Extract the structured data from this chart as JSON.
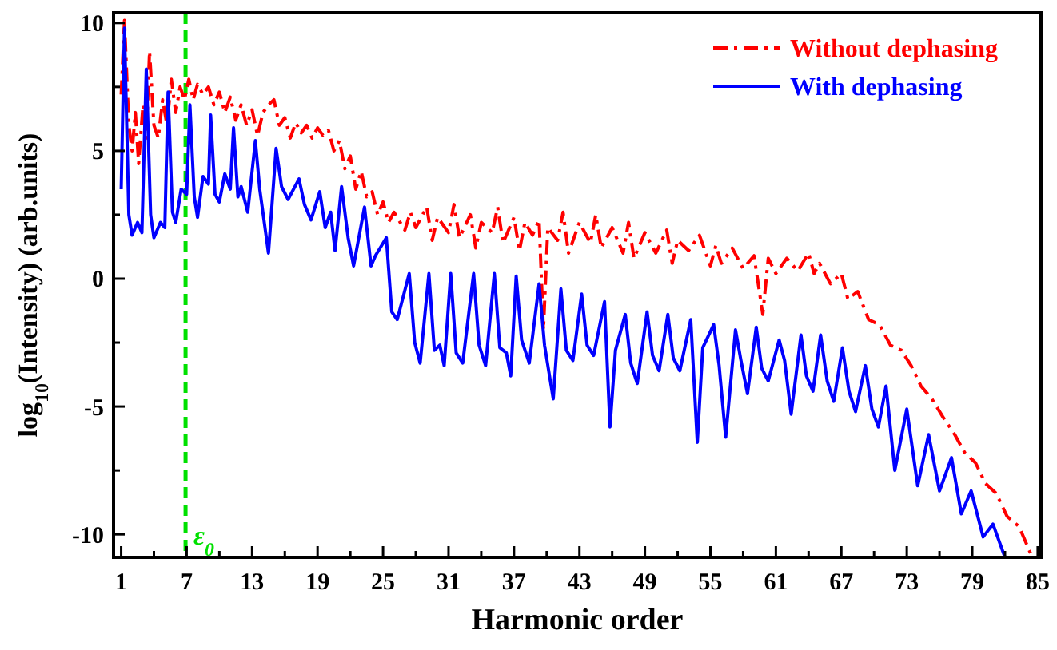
{
  "chart_data": {
    "type": "line",
    "xlabel": "Harmonic order",
    "ylabel": "log$_{10}$(Intensity) (arb.units)",
    "xlim": [
      0.3,
      85.3
    ],
    "ylim": [
      -10.9,
      10.4
    ],
    "xticks": [
      1,
      {
        "value": 4,
        "label": null
      },
      7,
      {
        "value": 10,
        "label": null
      },
      13,
      {
        "value": 16,
        "label": null
      },
      19,
      {
        "value": 22,
        "label": null
      },
      25,
      {
        "value": 28,
        "label": null
      },
      31,
      {
        "value": 34,
        "label": null
      },
      37,
      {
        "value": 40,
        "label": null
      },
      43,
      {
        "value": 46,
        "label": null
      },
      49,
      {
        "value": 52,
        "label": null
      },
      55,
      {
        "value": 58,
        "label": null
      },
      61,
      {
        "value": 64,
        "label": null
      },
      67,
      {
        "value": 70,
        "label": null
      },
      73,
      {
        "value": 76,
        "label": null
      },
      79,
      {
        "value": 82,
        "label": null
      },
      85
    ],
    "yticks": [
      -10,
      {
        "value": -7.5,
        "label": null
      },
      -5,
      {
        "value": -2.5,
        "label": null
      },
      0,
      {
        "value": 2.5,
        "label": null
      },
      5,
      {
        "value": 7.5,
        "label": null
      },
      10
    ],
    "grid": false,
    "legend": "top right",
    "ref_lines": [
      {
        "axis": "x",
        "value": 6.9,
        "label": "ε$_{0}$",
        "color": "#00e000",
        "line_style": "dashed"
      }
    ],
    "series": [
      {
        "name": "Without dephasing",
        "color": "#ff0000",
        "line_style": "dashdot",
        "x": [
          1,
          1.3,
          1.7,
          2,
          2.3,
          2.6,
          3,
          3.3,
          3.6,
          4,
          4.4,
          4.8,
          5.2,
          5.6,
          6,
          6.4,
          6.8,
          7.2,
          7.6,
          8,
          8.5,
          9,
          9.5,
          10,
          10.5,
          11,
          11.5,
          12,
          12.5,
          13,
          13.5,
          14,
          14.5,
          15,
          15.5,
          16,
          16.5,
          17,
          17.5,
          18,
          18.5,
          19,
          19.5,
          20,
          20.5,
          21,
          21.5,
          22,
          22.5,
          23,
          23.5,
          24,
          24.5,
          25,
          25.5,
          26,
          27,
          27.5,
          28,
          29,
          29.5,
          30,
          31,
          31.5,
          32,
          33,
          33.5,
          34,
          35,
          35.5,
          36,
          37,
          37.5,
          38,
          38.7,
          39.3,
          39.7,
          40.1,
          41,
          41.5,
          42,
          43,
          44,
          44.5,
          45,
          46,
          47,
          47.5,
          48,
          49,
          50,
          51,
          51.5,
          52,
          53,
          54,
          55,
          55.5,
          56,
          57,
          58,
          59,
          59.8,
          60.3,
          61,
          62,
          63,
          64,
          64.5,
          65,
          66,
          67,
          67.6,
          68.5,
          69.5,
          70.5,
          71.5,
          72.5,
          73.4,
          74.3,
          75.3,
          76.3,
          77.4,
          78.3,
          79.3,
          80.2,
          81.2,
          82.2,
          83.3,
          84.4
        ],
        "values": [
          7.2,
          10.1,
          6,
          5,
          6.5,
          4.5,
          6.8,
          5.5,
          8.9,
          6,
          5.5,
          7,
          6,
          7.8,
          6.5,
          7.5,
          7,
          7.8,
          7,
          7.6,
          7.2,
          7.5,
          6.8,
          7.3,
          6.5,
          7.1,
          6.2,
          6.8,
          6,
          6.6,
          5.6,
          6.5,
          6.8,
          7,
          6,
          6.3,
          5.5,
          6.1,
          5.7,
          6,
          5.5,
          5.9,
          5.6,
          5.8,
          5,
          5.4,
          4.3,
          4.8,
          3.5,
          4.2,
          3.2,
          3.4,
          2.5,
          3,
          2.2,
          2.6,
          1.9,
          2.6,
          2,
          2.8,
          1.5,
          2.4,
          1.8,
          2.9,
          1.6,
          2.5,
          1.2,
          2.2,
          1.8,
          2.8,
          1.4,
          2.4,
          1.1,
          2.2,
          1.7,
          2.3,
          -2,
          2,
          1.5,
          2.6,
          1,
          2.2,
          1.4,
          2.5,
          1.2,
          2,
          1,
          2.2,
          0.8,
          1.8,
          1,
          1.9,
          0.6,
          1.5,
          1.1,
          1.7,
          0.5,
          1.3,
          0.6,
          1.2,
          0.4,
          0.9,
          -1.4,
          0.8,
          0.2,
          0.8,
          0.3,
          1,
          0.2,
          0.6,
          -0.2,
          0.2,
          -0.8,
          -0.5,
          -1.6,
          -1.8,
          -2.6,
          -2.8,
          -3.4,
          -4.2,
          -4.7,
          -5.4,
          -6.1,
          -6.8,
          -7.2,
          -8,
          -8.4,
          -9.3,
          -9.7,
          -10.8
        ]
      },
      {
        "name": "With dephasing",
        "color": "#0000ff",
        "line_style": "solid",
        "x": [
          1,
          1.3,
          1.7,
          2,
          2.5,
          2.9,
          3.3,
          3.7,
          4,
          4.6,
          5,
          5.3,
          5.7,
          6,
          6.5,
          7,
          7.3,
          7.7,
          8,
          8.5,
          9,
          9.2,
          9.6,
          10,
          10.5,
          11,
          11.3,
          11.7,
          12,
          12.6,
          13.3,
          13.7,
          14.5,
          15.2,
          15.7,
          16.3,
          17.3,
          17.8,
          18.4,
          19.2,
          19.7,
          20.2,
          20.6,
          21.2,
          21.8,
          22.3,
          23.3,
          23.9,
          24.3,
          25.3,
          25.8,
          26.3,
          27.4,
          27.9,
          28.4,
          29.2,
          29.7,
          30.2,
          30.6,
          31.2,
          31.7,
          32.3,
          33.3,
          33.8,
          34.4,
          35.2,
          35.7,
          36.3,
          36.7,
          37.2,
          37.7,
          38.4,
          39.3,
          39.8,
          40.6,
          41.3,
          41.8,
          42.4,
          43.2,
          43.7,
          44.3,
          45.3,
          45.8,
          46.3,
          47.2,
          47.7,
          48.3,
          49.2,
          49.7,
          50.3,
          51.1,
          51.6,
          52.2,
          53.2,
          53.8,
          54.3,
          55.3,
          55.8,
          56.4,
          57.3,
          57.8,
          58.4,
          59.2,
          59.7,
          60.3,
          61.3,
          61.8,
          62.4,
          63.3,
          63.8,
          64.4,
          65.1,
          65.7,
          66.3,
          67.1,
          67.7,
          68.3,
          69.2,
          69.8,
          70.4,
          71.1,
          71.9,
          73,
          74,
          75,
          76,
          77.1,
          78,
          78.9,
          80,
          80.9,
          82
        ],
        "values": [
          3.5,
          9.8,
          2.5,
          1.7,
          2.2,
          1.8,
          8.2,
          2.5,
          1.6,
          2.2,
          2,
          7.3,
          2.6,
          2.2,
          3.5,
          3.3,
          6.8,
          3.2,
          2.4,
          4,
          3.7,
          6.4,
          3.3,
          3,
          4.1,
          3.5,
          5.9,
          3.2,
          3.6,
          2.6,
          5.4,
          3.5,
          1,
          5.1,
          3.6,
          3.1,
          3.9,
          2.9,
          2.3,
          3.4,
          2,
          2.6,
          1.1,
          3.6,
          1.6,
          0.5,
          2.8,
          0.5,
          0.9,
          1.6,
          -1.3,
          -1.6,
          0.2,
          -2.5,
          -3.3,
          0.2,
          -2.8,
          -2.6,
          -3.4,
          0.2,
          -2.9,
          -3.3,
          0.2,
          -2.6,
          -3.4,
          0.2,
          -2.7,
          -2.9,
          -3.8,
          0.1,
          -2.4,
          -3.3,
          -0.2,
          -2.6,
          -4.7,
          -0.4,
          -2.8,
          -3.2,
          -0.6,
          -2.6,
          -3,
          -0.9,
          -5.8,
          -2.8,
          -1.4,
          -3.3,
          -4.1,
          -1.3,
          -3,
          -3.6,
          -1.4,
          -3.1,
          -3.6,
          -1.6,
          -6.4,
          -2.7,
          -1.8,
          -3.4,
          -6.2,
          -2,
          -3.2,
          -4.5,
          -1.9,
          -3.5,
          -4,
          -2.4,
          -3.2,
          -5.3,
          -2.2,
          -3.8,
          -4.4,
          -2.2,
          -4,
          -4.8,
          -2.7,
          -4.4,
          -5.2,
          -3.4,
          -5.1,
          -5.8,
          -4.2,
          -7.5,
          -5.1,
          -8.1,
          -6.1,
          -8.3,
          -7,
          -9.2,
          -8.3,
          -10.1,
          -9.6,
          -10.9
        ]
      }
    ]
  }
}
